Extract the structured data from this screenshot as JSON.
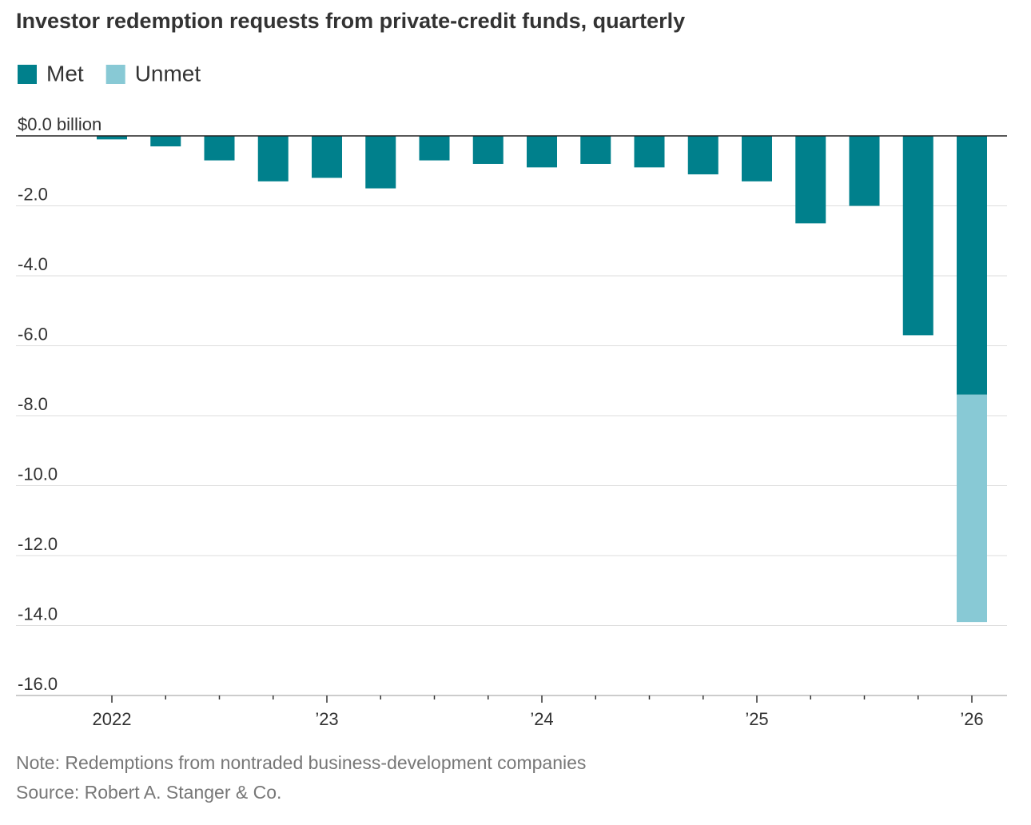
{
  "chart_data": {
    "type": "bar",
    "stacked": true,
    "title": "Investor redemption requests from private-credit funds, quarterly",
    "categories": [
      "2022",
      null,
      null,
      null,
      "’23",
      null,
      null,
      null,
      "’24",
      null,
      null,
      null,
      "’25",
      null,
      null,
      null,
      "’26"
    ],
    "series": [
      {
        "name": "Met",
        "color": "#00808c",
        "values": [
          -0.1,
          -0.3,
          -0.7,
          -1.3,
          -1.2,
          -1.5,
          -0.7,
          -0.8,
          -0.9,
          -0.8,
          -0.9,
          -1.1,
          -1.3,
          -2.5,
          -2.0,
          -5.7,
          -7.4
        ]
      },
      {
        "name": "Unmet",
        "color": "#88c9d5",
        "values": [
          null,
          null,
          null,
          null,
          null,
          null,
          null,
          null,
          null,
          null,
          null,
          null,
          null,
          null,
          null,
          null,
          -6.5
        ]
      }
    ],
    "ylim": [
      -16,
      0
    ],
    "yticks": [
      {
        "value": 0,
        "label": "$0.0 billion"
      },
      {
        "value": -2,
        "label": "-2.0"
      },
      {
        "value": -4,
        "label": "-4.0"
      },
      {
        "value": -6,
        "label": "-6.0"
      },
      {
        "value": -8,
        "label": "-8.0"
      },
      {
        "value": -10,
        "label": "-10.0"
      },
      {
        "value": -12,
        "label": "-12.0"
      },
      {
        "value": -14,
        "label": "-14.0"
      },
      {
        "value": -16,
        "label": "-16.0"
      }
    ],
    "grid": true,
    "legend": "top-left",
    "note": "Note: Redemptions from nontraded business-development companies",
    "source": "Source: Robert A. Stanger & Co."
  }
}
